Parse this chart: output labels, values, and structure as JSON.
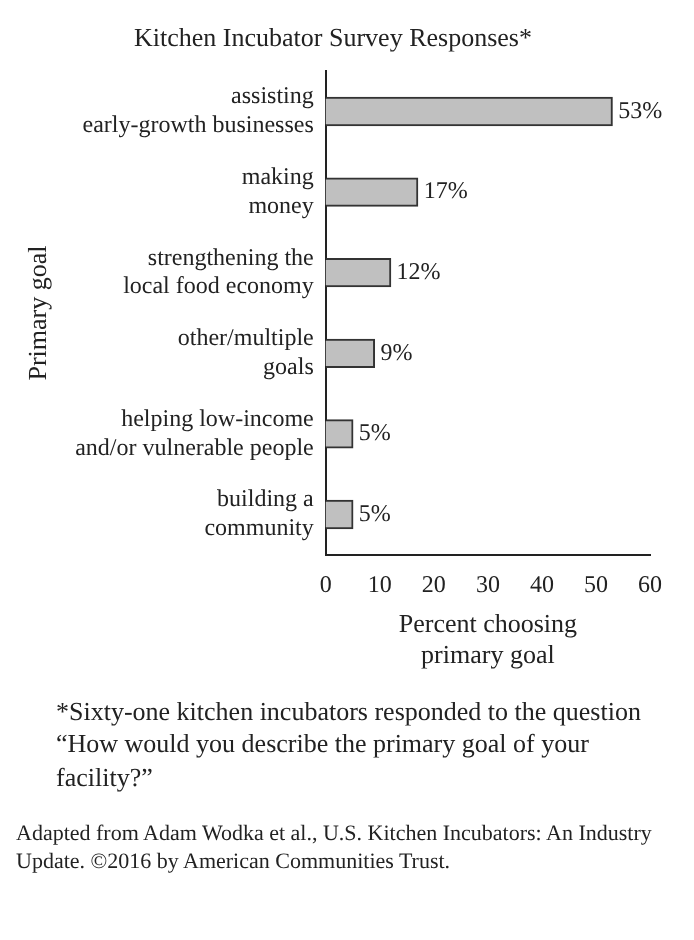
{
  "chart_data": {
    "type": "bar",
    "orientation": "horizontal",
    "title": "Kitchen Incubator Survey Responses*",
    "xlabel": "Percent choosing\nprimary goal",
    "ylabel": "Primary goal",
    "categories": [
      "assisting\nearly-growth businesses",
      "making\nmoney",
      "strengthening the\nlocal food economy",
      "other/multiple\ngoals",
      "helping low-income\nand/or vulnerable people",
      "building a\ncommunity"
    ],
    "values": [
      53,
      17,
      12,
      9,
      5,
      5
    ],
    "value_labels": [
      "53%",
      "17%",
      "12%",
      "9%",
      "5%",
      "5%"
    ],
    "color": "#c0c0c0",
    "xlim": [
      0,
      60
    ],
    "xticks": [
      0,
      10,
      20,
      30,
      40,
      50,
      60
    ],
    "grid": false,
    "legend": false,
    "annotations": [
      "*Sixty-one kitchen incubators responded to the question “How would you describe the primary goal of your facility?”",
      "Adapted from Adam Wodka et al., U.S. Kitchen Incubators: An Industry Update. ©2016 by American Communities Trust."
    ]
  }
}
